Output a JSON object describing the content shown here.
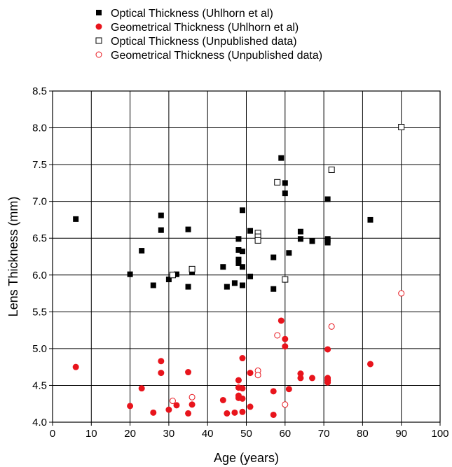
{
  "chart_data": {
    "type": "scatter",
    "xlabel": "Age (years)",
    "ylabel": "Lens Thickness (mm)",
    "xlim": [
      0,
      100
    ],
    "ylim": [
      4.0,
      8.5
    ],
    "x_ticks": [
      "0",
      "10",
      "20",
      "30",
      "40",
      "50",
      "60",
      "70",
      "80",
      "90",
      "100"
    ],
    "y_ticks": [
      "4.0",
      "4.5",
      "5.0",
      "5.5",
      "6.0",
      "6.5",
      "7.0",
      "7.5",
      "8.0",
      "8.5"
    ],
    "grid": true,
    "legend_position": "top",
    "series": [
      {
        "name": "Optical Thickness (Uhlhorn et al)",
        "marker": "square-filled",
        "color": "#000000",
        "points": [
          [
            6,
            6.76
          ],
          [
            20,
            6.01
          ],
          [
            23,
            6.33
          ],
          [
            26,
            5.86
          ],
          [
            28,
            6.81
          ],
          [
            28,
            6.61
          ],
          [
            30,
            5.94
          ],
          [
            32,
            6.01
          ],
          [
            35,
            6.62
          ],
          [
            35,
            5.84
          ],
          [
            36,
            6.04
          ],
          [
            44,
            6.11
          ],
          [
            45,
            5.84
          ],
          [
            47,
            5.89
          ],
          [
            48,
            6.49
          ],
          [
            48,
            6.34
          ],
          [
            48,
            6.21
          ],
          [
            48,
            6.16
          ],
          [
            49,
            6.88
          ],
          [
            49,
            6.32
          ],
          [
            49,
            6.11
          ],
          [
            49,
            5.86
          ],
          [
            51,
            6.6
          ],
          [
            51,
            5.98
          ],
          [
            57,
            6.24
          ],
          [
            57,
            5.81
          ],
          [
            59,
            7.59
          ],
          [
            60,
            7.25
          ],
          [
            60,
            7.11
          ],
          [
            61,
            6.3
          ],
          [
            64,
            6.59
          ],
          [
            64,
            6.49
          ],
          [
            67,
            6.46
          ],
          [
            71,
            7.03
          ],
          [
            71,
            6.49
          ],
          [
            71,
            6.47
          ],
          [
            71,
            6.44
          ],
          [
            82,
            6.75
          ]
        ]
      },
      {
        "name": "Geometrical Thickness (Uhlhorn et al)",
        "marker": "circle-filled",
        "color": "#e8141c",
        "points": [
          [
            6,
            4.75
          ],
          [
            20,
            4.22
          ],
          [
            23,
            4.46
          ],
          [
            26,
            4.13
          ],
          [
            28,
            4.83
          ],
          [
            28,
            4.67
          ],
          [
            30,
            4.17
          ],
          [
            32,
            4.23
          ],
          [
            35,
            4.68
          ],
          [
            35,
            4.12
          ],
          [
            36,
            4.24
          ],
          [
            44,
            4.3
          ],
          [
            45,
            4.12
          ],
          [
            47,
            4.13
          ],
          [
            48,
            4.57
          ],
          [
            48,
            4.47
          ],
          [
            48,
            4.36
          ],
          [
            48,
            4.33
          ],
          [
            49,
            4.87
          ],
          [
            49,
            4.46
          ],
          [
            49,
            4.32
          ],
          [
            49,
            4.14
          ],
          [
            51,
            4.67
          ],
          [
            51,
            4.21
          ],
          [
            57,
            4.42
          ],
          [
            57,
            4.1
          ],
          [
            59,
            5.38
          ],
          [
            60,
            5.13
          ],
          [
            60,
            5.03
          ],
          [
            61,
            4.45
          ],
          [
            64,
            4.66
          ],
          [
            64,
            4.6
          ],
          [
            67,
            4.6
          ],
          [
            71,
            4.99
          ],
          [
            71,
            4.6
          ],
          [
            71,
            4.57
          ],
          [
            71,
            4.54
          ],
          [
            82,
            4.79
          ]
        ]
      },
      {
        "name": "Optical Thickness (Unpublished data)",
        "marker": "square-open",
        "color": "#000000",
        "points": [
          [
            31,
            6.0
          ],
          [
            36,
            6.08
          ],
          [
            53,
            6.57
          ],
          [
            53,
            6.52
          ],
          [
            53,
            6.47
          ],
          [
            58,
            7.26
          ],
          [
            60,
            5.94
          ],
          [
            72,
            7.43
          ],
          [
            90,
            8.01
          ]
        ]
      },
      {
        "name": "Geometrical Thickness (Unpublished data)",
        "marker": "circle-open",
        "color": "#e8141c",
        "points": [
          [
            31,
            4.29
          ],
          [
            36,
            4.34
          ],
          [
            53,
            4.7
          ],
          [
            53,
            4.64
          ],
          [
            58,
            5.18
          ],
          [
            60,
            4.24
          ],
          [
            72,
            5.3
          ],
          [
            90,
            5.75
          ]
        ]
      }
    ]
  }
}
